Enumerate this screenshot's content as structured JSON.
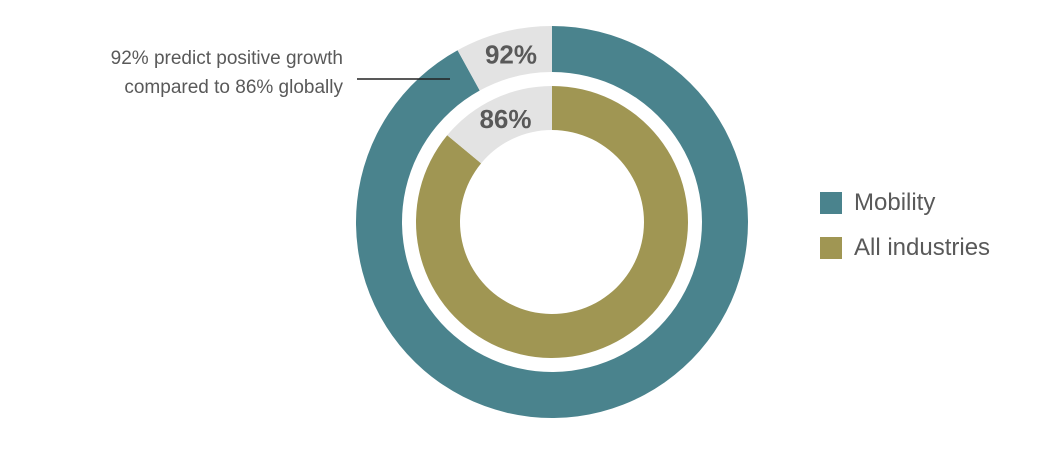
{
  "chart_data": {
    "type": "pie",
    "variant": "nested-donut",
    "series": [
      {
        "name": "Mobility",
        "value": 92,
        "remainder": 8,
        "label": "92%",
        "color": "#4a838d"
      },
      {
        "name": "All industries",
        "value": 86,
        "remainder": 14,
        "label": "86%",
        "color": "#a09653"
      }
    ],
    "remainder_color": "#e3e3e3",
    "annotation": [
      "92% predict positive growth",
      "compared to 86% globally"
    ],
    "legend": {
      "position": "right",
      "entries": [
        "Mobility",
        "All industries"
      ]
    }
  }
}
